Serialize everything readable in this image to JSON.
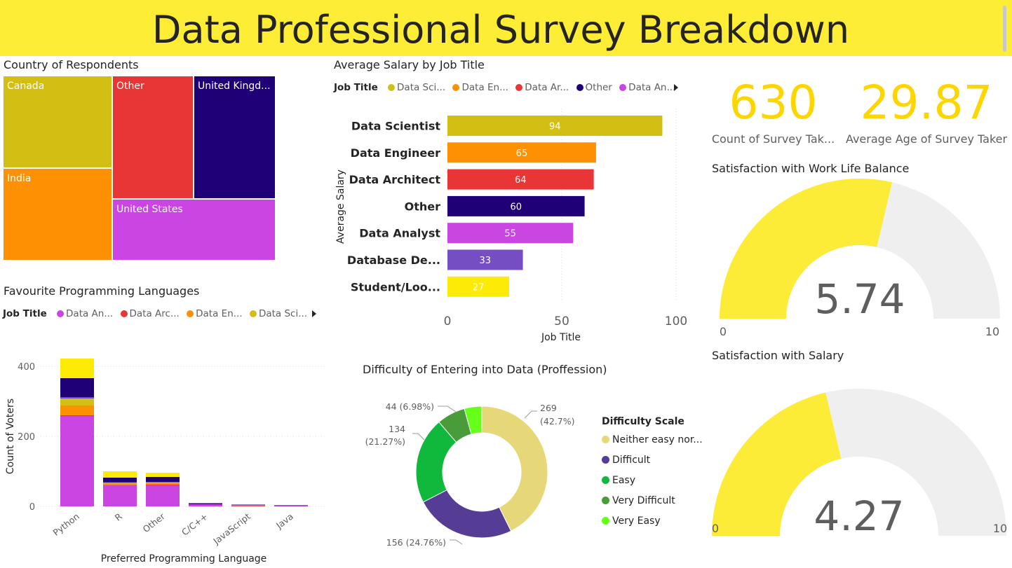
{
  "page_title": "Data Professional Survey Breakdown",
  "colors": {
    "accent": "#fdee35",
    "kpi": "#fdd600",
    "gauge_fill": "#fdec37",
    "gauge_bg": "#f0efef"
  },
  "treemap": {
    "title": "Country of Respondents",
    "cells": [
      {
        "label": "Canada",
        "color": "#d3bf14"
      },
      {
        "label": "India",
        "color": "#fd9103"
      },
      {
        "label": "Other",
        "color": "#e83535"
      },
      {
        "label": "United Kingd...",
        "color": "#1f0077"
      },
      {
        "label": "United States",
        "color": "#ca45e1"
      }
    ]
  },
  "salary_chart": {
    "title": "Average Salary by Job Title",
    "legend_title": "Job Title",
    "legend": [
      {
        "label": "Data Sci...",
        "color": "#d3bf14"
      },
      {
        "label": "Data En...",
        "color": "#fd9103"
      },
      {
        "label": "Data Ar...",
        "color": "#e83535"
      },
      {
        "label": "Other",
        "color": "#1f0077"
      },
      {
        "label": "Data An...",
        "color": "#ca45e1"
      }
    ],
    "ylabel": "Average Salary",
    "xlabel": "Job Title",
    "ticks": [
      "0",
      "50",
      "100"
    ]
  },
  "languages_chart": {
    "title": "Favourite Programming Languages",
    "legend_title": "Job Title",
    "legend": [
      {
        "label": "Data An...",
        "color": "#ca45e1"
      },
      {
        "label": "Data Arc...",
        "color": "#e83535"
      },
      {
        "label": "Data En...",
        "color": "#fd9103"
      },
      {
        "label": "Data Sci...",
        "color": "#d3bf14"
      }
    ],
    "ylabel": "Count of Voters",
    "xlabel": "Preferred Programming Language",
    "ticks": [
      "0",
      "200",
      "400"
    ]
  },
  "donut": {
    "title": "Difficulty of Entering into Data (Proffession)",
    "legend_title": "Difficulty Scale"
  },
  "kpis": [
    {
      "value": "630",
      "label": "Count of Survey Tak..."
    },
    {
      "value": "29.87",
      "label": "Average Age of Survey Taker"
    }
  ],
  "gauges": [
    {
      "title": "Satisfaction with Work Life Balance",
      "value_text": "5.74",
      "min_label": "0",
      "max_label": "10"
    },
    {
      "title": "Satisfaction with Salary",
      "value_text": "4.27",
      "min_label": "0",
      "max_label": "10"
    }
  ],
  "chart_data": [
    {
      "type": "treemap",
      "title": "Country of Respondents",
      "categories": [
        "United States",
        "India",
        "Other",
        "Canada",
        "United Kingd..."
      ],
      "values": [
        0.305,
        0.199,
        0.189,
        0.207,
        0.179
      ]
    },
    {
      "type": "bar",
      "orientation": "horizontal",
      "title": "Average Salary by Job Title",
      "categories": [
        "Data Scientist",
        "Data Engineer",
        "Data Architect",
        "Other",
        "Data Analyst",
        "Database De...",
        "Student/Loo..."
      ],
      "values": [
        94,
        65,
        64,
        60,
        55,
        33,
        27
      ],
      "colors": [
        "#d3bf14",
        "#fd9103",
        "#e83535",
        "#1f0077",
        "#ca45e1",
        "#744ec2",
        "#fdea06"
      ],
      "xlabel": "Job Title",
      "ylabel": "Average Salary",
      "xlim": [
        0,
        100
      ]
    },
    {
      "type": "bar",
      "stacked": true,
      "title": "Favourite Programming Languages",
      "categories": [
        "Python",
        "R",
        "Other",
        "C/C++",
        "JavaScript",
        "Java"
      ],
      "xlabel": "Preferred Programming Language",
      "ylabel": "Count of Voters",
      "ylim": [
        0,
        430
      ],
      "series": [
        {
          "name": "Data Analyst",
          "color": "#ca45e1",
          "values": [
            258,
            61,
            61,
            6,
            1,
            2
          ]
        },
        {
          "name": "Data Architect",
          "color": "#e83535",
          "values": [
            2,
            0,
            1,
            0,
            0,
            0
          ]
        },
        {
          "name": "Data Engineer",
          "color": "#fd9103",
          "values": [
            28,
            4,
            4,
            0,
            2,
            0
          ]
        },
        {
          "name": "Data Scientist",
          "color": "#d3bf14",
          "values": [
            20,
            3,
            3,
            0,
            1,
            0
          ]
        },
        {
          "color": "#744ec2",
          "values": [
            4,
            1,
            1,
            0,
            0,
            0
          ]
        },
        {
          "name": "Other",
          "color": "#1f0077",
          "values": [
            54,
            13,
            14,
            3,
            1,
            1
          ]
        },
        {
          "color": "#fdea06",
          "values": [
            56,
            18,
            12,
            0,
            0,
            0
          ]
        }
      ]
    },
    {
      "type": "pie",
      "donut": true,
      "title": "Difficulty of Entering into Data (Proffession)",
      "legend_title": "Difficulty Scale",
      "categories": [
        "Neither easy nor...",
        "Difficult",
        "Easy",
        "Very Difficult",
        "Very Easy"
      ],
      "values": [
        269,
        156,
        134,
        44,
        27
      ],
      "colors": [
        "#e6d878",
        "#553d96",
        "#10b83c",
        "#4a9c3b",
        "#66ff1a"
      ],
      "data_labels": [
        {
          "value": "269",
          "pct": "(42.7%)"
        },
        {
          "value": "156 (24.76%)"
        },
        {
          "value": "134",
          "pct": "(21.27%)"
        },
        {
          "value": "44 (6.98%)"
        }
      ]
    },
    {
      "type": "gauge",
      "title": "Satisfaction with Work Life Balance",
      "value": 5.74,
      "min": 0,
      "max": 10
    },
    {
      "type": "gauge",
      "title": "Satisfaction with Salary",
      "value": 4.27,
      "min": 0,
      "max": 10
    }
  ]
}
